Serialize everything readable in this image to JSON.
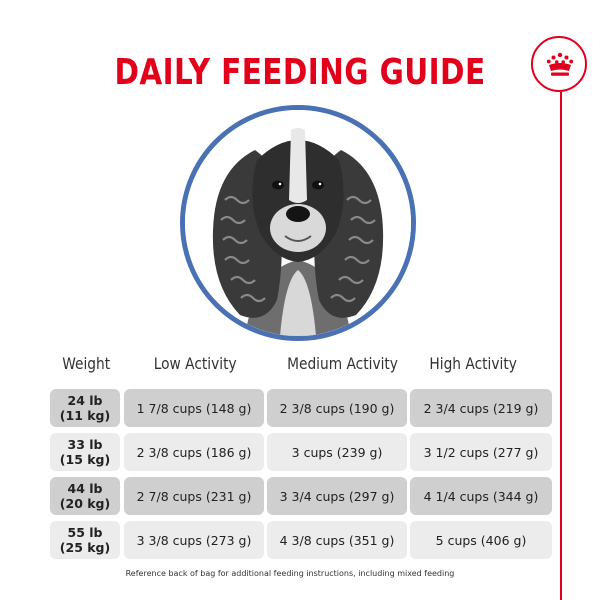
{
  "title": "DAILY FEEDING GUIDE",
  "colors": {
    "accent": "#e2001a",
    "ring": "#4a71b3",
    "row_dark": "#cfcfcf",
    "row_light": "#ececec"
  },
  "brand_icon": "crown-icon",
  "columns": [
    "Weight",
    "Low Activity",
    "Medium Activity",
    "High Activity"
  ],
  "rows": [
    {
      "weight_lb": "24 lb",
      "weight_kg": "(11 kg)",
      "low": "1 7/8 cups (148 g)",
      "medium": "2 3/8 cups (190 g)",
      "high": "2 3/4 cups (219 g)"
    },
    {
      "weight_lb": "33 lb",
      "weight_kg": "(15 kg)",
      "low": "2 3/8 cups (186 g)",
      "medium": "3 cups (239 g)",
      "high": "3 1/2 cups (277 g)"
    },
    {
      "weight_lb": "44 lb",
      "weight_kg": "(20 kg)",
      "low": "2 7/8 cups (231 g)",
      "medium": "3 3/4 cups (297 g)",
      "high": "4 1/4 cups (344 g)"
    },
    {
      "weight_lb": "55 lb",
      "weight_kg": "(25 kg)",
      "low": "3 3/8 cups (273 g)",
      "medium": "4 3/8 cups (351 g)",
      "high": "5 cups (406 g)"
    }
  ],
  "footnote": "Reference back of bag for additional feeding instructions, including mixed feeding"
}
